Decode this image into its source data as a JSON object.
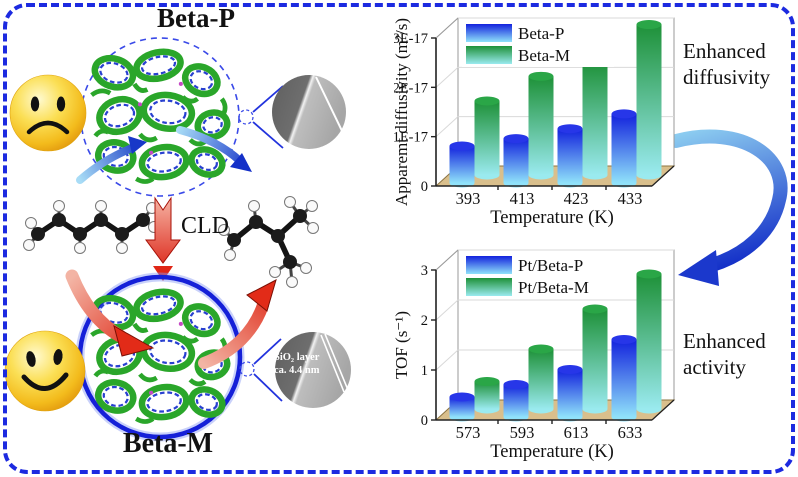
{
  "scene": {
    "beta_p_label": "Beta-P",
    "beta_m_label": "Beta-M",
    "cld_label": "CLD",
    "enhanced_diffusivity": {
      "line1": "Enhanced",
      "line2": "diffusivity"
    },
    "enhanced_activity": {
      "line1": "Enhanced",
      "line2": "activity"
    },
    "sio2_note": {
      "line1": "SiO₂ layer",
      "line2": "ca. 4.4 nm"
    }
  },
  "colors": {
    "border_blue": "#1c2ae0",
    "bar_blue_top": "#1322dd",
    "bar_blue_bottom": "#90e2fa",
    "bar_blue_cap": "#2736e8",
    "bar_green_top": "#1e9138",
    "bar_green_bottom": "#9aeaef",
    "bar_green_cap": "#2aa647",
    "floor_tan": "#d9bf8c",
    "arrow_red": "#e02616",
    "arrow_blue": "#1a38cc",
    "smiley_yellow": "#f5c62a"
  },
  "chart_data": [
    {
      "type": "bar",
      "style": "3d-cylinder",
      "title": "",
      "categories": [
        "393",
        "413",
        "423",
        "433"
      ],
      "series": [
        {
          "name": "Beta-P",
          "values": [
            7.5e-18,
            9e-18,
            1.1e-17,
            1.4e-17
          ]
        },
        {
          "name": "Beta-M",
          "values": [
            1.5e-17,
            2e-17,
            2.3e-17,
            3.05e-17
          ]
        }
      ],
      "xlabel": "Temperature (K)",
      "ylabel": "Apparemt diffusivity (m²/s)",
      "ylim": [
        0,
        3e-17
      ],
      "yticks": [
        {
          "v": 0,
          "label": "0"
        },
        {
          "v": 1e-17,
          "label": "1E-17"
        },
        {
          "v": 2e-17,
          "label": "2E-17"
        },
        {
          "v": 3e-17,
          "label": "3E-17"
        }
      ],
      "grid": true,
      "legend_position": "top-left"
    },
    {
      "type": "bar",
      "style": "3d-cylinder",
      "title": "",
      "categories": [
        "573",
        "593",
        "613",
        "633"
      ],
      "series": [
        {
          "name": "Pt/Beta-P",
          "values": [
            0.4,
            0.65,
            0.95,
            1.55
          ]
        },
        {
          "name": "Pt/Beta-M",
          "values": [
            0.55,
            1.2,
            2.0,
            2.7
          ]
        }
      ],
      "xlabel": "Temperature (K)",
      "ylabel": "TOF (s⁻¹)",
      "ylim": [
        0,
        3
      ],
      "yticks": [
        {
          "v": 0,
          "label": "0"
        },
        {
          "v": 1,
          "label": "1"
        },
        {
          "v": 2,
          "label": "2"
        },
        {
          "v": 3,
          "label": "3"
        }
      ],
      "grid": true,
      "legend_position": "top-left"
    }
  ]
}
